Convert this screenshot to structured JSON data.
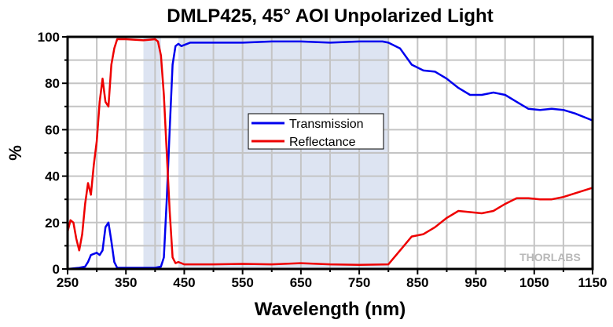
{
  "chart_data": {
    "type": "line",
    "title": "DMLP425, 45° AOI Unpolarized Light",
    "xlabel": "Wavelength (nm)",
    "ylabel": "%",
    "xlim": [
      250,
      1150
    ],
    "ylim": [
      0,
      100
    ],
    "xticks": [
      250,
      350,
      450,
      550,
      650,
      750,
      850,
      950,
      1050,
      1150
    ],
    "yticks": [
      0,
      20,
      40,
      60,
      80,
      100
    ],
    "grid": true,
    "legend_position": "center",
    "shaded_bands": [
      [
        380,
        410
      ],
      [
        440,
        800
      ]
    ],
    "watermark": "THORLABS",
    "series": [
      {
        "name": "Transmission",
        "color": "#0000ee",
        "x": [
          250,
          270,
          280,
          285,
          290,
          300,
          305,
          310,
          315,
          320,
          325,
          330,
          335,
          350,
          400,
          410,
          415,
          420,
          425,
          430,
          435,
          440,
          445,
          460,
          500,
          550,
          600,
          650,
          700,
          750,
          790,
          800,
          820,
          840,
          860,
          880,
          900,
          920,
          940,
          960,
          980,
          1000,
          1020,
          1040,
          1060,
          1080,
          1100,
          1120,
          1150
        ],
        "y": [
          0,
          0.5,
          1,
          3,
          6,
          7,
          6,
          8,
          18,
          20,
          12,
          3,
          0.5,
          0.5,
          0.5,
          1,
          5,
          30,
          60,
          88,
          96,
          97,
          96,
          97.5,
          97.5,
          97.5,
          98,
          98,
          97.5,
          98,
          98,
          97.5,
          95,
          88,
          85.5,
          85,
          82,
          78,
          75,
          75,
          76,
          75,
          72,
          69,
          68.5,
          69,
          68.5,
          67,
          64
        ]
      },
      {
        "name": "Reflectance",
        "color": "#ee0000",
        "x": [
          250,
          255,
          260,
          265,
          270,
          275,
          280,
          285,
          290,
          295,
          300,
          305,
          310,
          315,
          320,
          325,
          330,
          335,
          350,
          380,
          400,
          405,
          410,
          415,
          420,
          425,
          430,
          435,
          440,
          450,
          500,
          550,
          600,
          650,
          700,
          750,
          800,
          820,
          840,
          860,
          880,
          900,
          920,
          940,
          960,
          980,
          1000,
          1020,
          1040,
          1060,
          1080,
          1100,
          1150
        ],
        "y": [
          16,
          21,
          20,
          13,
          8,
          15,
          28,
          37,
          32,
          45,
          55,
          72,
          82,
          72,
          70,
          88,
          95,
          99,
          99,
          98.5,
          99,
          98,
          92,
          75,
          50,
          25,
          5,
          2.5,
          3,
          2,
          2,
          2.2,
          2,
          2.5,
          2,
          1.8,
          2,
          8,
          14,
          15,
          18,
          22,
          25,
          24.5,
          24,
          25,
          28,
          30.5,
          30.5,
          30,
          30,
          31,
          35
        ]
      }
    ]
  }
}
